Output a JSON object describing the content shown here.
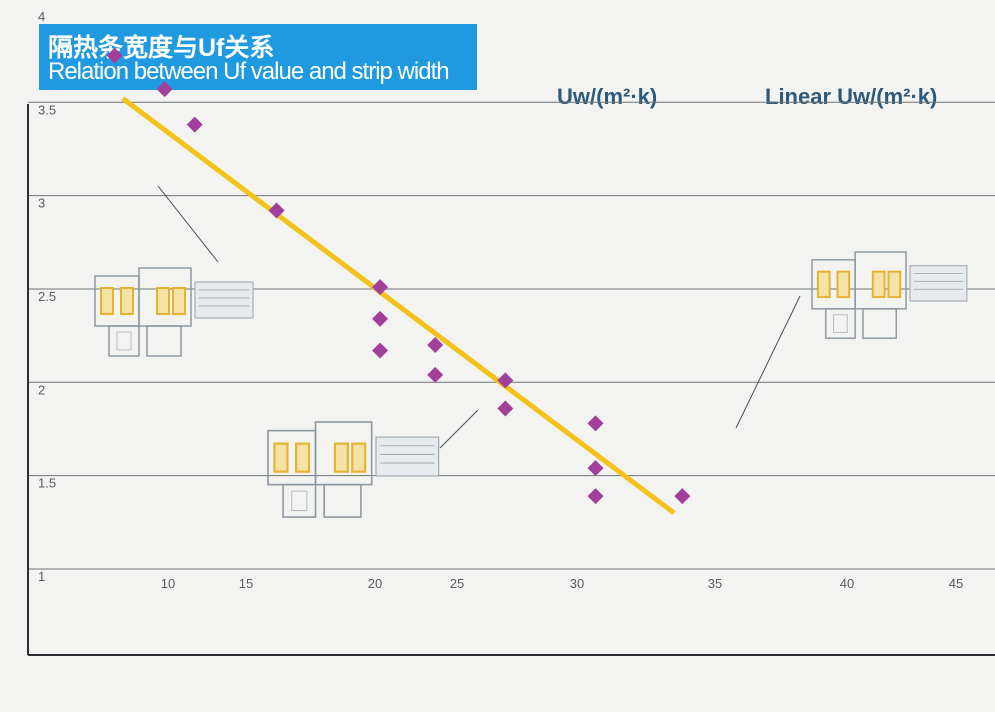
{
  "header": {
    "title_cn": "隔热条宽度与Uf关系",
    "title_en": "Relation between Uf value and strip width"
  },
  "legend": {
    "series1": "Uw/(m²·k)",
    "series2": "Linear Uw/(m²·k)"
  },
  "colors": {
    "title_bg": "#1f9ae0",
    "marker": "#a23f9b",
    "trend": "#f4c21a",
    "grid": "#6f7478",
    "axis": "#2c2f32"
  },
  "chart_data": {
    "type": "scatter",
    "title": "Relation between Uf value and strip width",
    "x_ticks": [
      10,
      15,
      20,
      25,
      30,
      35,
      40,
      45
    ],
    "y_ticks": [
      1,
      1.5,
      2,
      2.5,
      3,
      3.5,
      4
    ],
    "ylim": [
      1,
      4
    ],
    "grid": "horizontal",
    "legend_position": "top-right",
    "series": [
      {
        "name": "Uw/(m²·k)",
        "type": "scatter",
        "points": [
          {
            "x": 6.8,
            "y": 3.75
          },
          {
            "x": 9.8,
            "y": 3.57
          },
          {
            "x": 11.6,
            "y": 3.38
          },
          {
            "x": 16.5,
            "y": 2.92
          },
          {
            "x": 22.7,
            "y": 2.51
          },
          {
            "x": 22.7,
            "y": 2.34
          },
          {
            "x": 22.7,
            "y": 2.17
          },
          {
            "x": 26.0,
            "y": 2.2
          },
          {
            "x": 26.0,
            "y": 2.04
          },
          {
            "x": 30.2,
            "y": 2.01
          },
          {
            "x": 30.2,
            "y": 1.86
          },
          {
            "x": 35.6,
            "y": 1.78
          },
          {
            "x": 35.6,
            "y": 1.54
          },
          {
            "x": 35.6,
            "y": 1.39
          },
          {
            "x": 40.8,
            "y": 1.39
          }
        ]
      },
      {
        "name": "Linear Uw/(m²·k)",
        "type": "line",
        "points": [
          {
            "x": 7.3,
            "y": 3.52
          },
          {
            "x": 40.3,
            "y": 1.3
          }
        ]
      }
    ]
  }
}
